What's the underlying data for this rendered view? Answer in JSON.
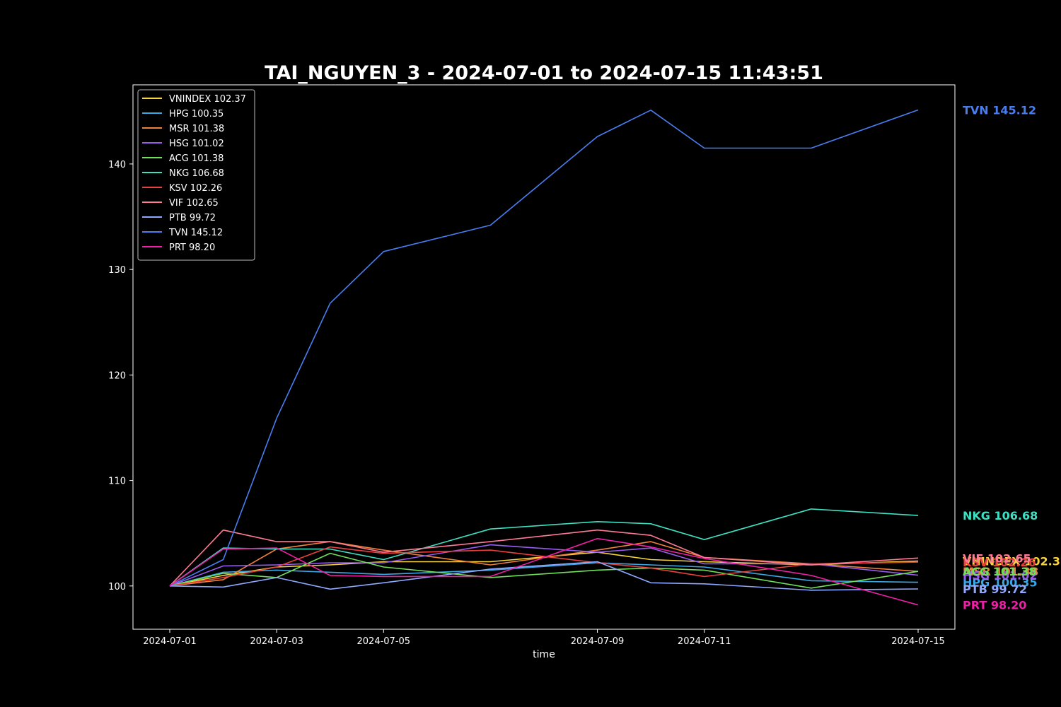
{
  "chart_data": {
    "type": "line",
    "title": "TAI_NGUYEN_3 - 2024-07-01 to 2024-07-15 11:43:51",
    "xlabel": "time",
    "ylabel": "",
    "x": [
      "2024-07-01",
      "2024-07-02",
      "2024-07-03",
      "2024-07-04",
      "2024-07-05",
      "2024-07-07",
      "2024-07-09",
      "2024-07-10",
      "2024-07-11",
      "2024-07-13",
      "2024-07-15"
    ],
    "x_ticks": [
      "2024-07-01",
      "2024-07-03",
      "2024-07-05",
      "2024-07-09",
      "2024-07-11",
      "2024-07-15"
    ],
    "y_ticks": [
      100,
      110,
      120,
      130,
      140
    ],
    "ylim": [
      95.9,
      147.5
    ],
    "grid": false,
    "legend_position": "top-left",
    "series": [
      {
        "name": "VNINDEX",
        "label": "VNINDEX 102.37",
        "color": "#f7d43b",
        "values": [
          100,
          101.0,
          101.8,
          102.0,
          102.3,
          102.3,
          103.2,
          102.5,
          102.3,
          102.0,
          102.37
        ]
      },
      {
        "name": "HPG",
        "label": "HPG 100.35",
        "color": "#3ba8e6",
        "values": [
          100,
          101.3,
          101.5,
          101.3,
          101.1,
          101.5,
          102.2,
          102.0,
          101.8,
          100.5,
          100.35
        ]
      },
      {
        "name": "MSR",
        "label": "MSR 101.38",
        "color": "#f0813a",
        "values": [
          100,
          100.6,
          103.5,
          104.2,
          103.4,
          102.0,
          103.4,
          104.2,
          102.7,
          102.1,
          101.38
        ]
      },
      {
        "name": "HSG",
        "label": "HSG 101.02",
        "color": "#9a5cf0",
        "values": [
          100,
          101.9,
          102.0,
          102.2,
          102.2,
          103.9,
          103.2,
          103.6,
          102.1,
          102.1,
          101.02
        ]
      },
      {
        "name": "ACG",
        "label": "ACG 101.38",
        "color": "#6ee05a",
        "values": [
          100,
          101.2,
          100.8,
          103.1,
          101.8,
          100.8,
          101.5,
          101.7,
          101.5,
          99.8,
          101.38
        ]
      },
      {
        "name": "NKG",
        "label": "NKG 106.68",
        "color": "#3ee0c3",
        "values": [
          100,
          103.6,
          103.5,
          103.5,
          102.5,
          105.4,
          106.1,
          105.9,
          104.4,
          107.3,
          106.68
        ]
      },
      {
        "name": "KSV",
        "label": "KSV 102.26",
        "color": "#e8403f",
        "values": [
          100,
          100.8,
          101.8,
          103.7,
          103.1,
          103.4,
          102.2,
          101.7,
          100.9,
          102.1,
          102.26
        ]
      },
      {
        "name": "VIF",
        "label": "VIF 102.65",
        "color": "#ff7a94",
        "values": [
          100,
          105.3,
          104.2,
          104.2,
          103.2,
          104.2,
          105.3,
          104.8,
          102.7,
          102.0,
          102.65
        ]
      },
      {
        "name": "PTB",
        "label": "PTB 99.72",
        "color": "#8fa8ff",
        "values": [
          100,
          99.9,
          100.8,
          99.7,
          100.3,
          101.6,
          102.3,
          100.3,
          100.2,
          99.6,
          99.72
        ]
      },
      {
        "name": "TVN",
        "label": "TVN 145.12",
        "color": "#4a7ef0",
        "values": [
          100,
          102.5,
          115.9,
          126.8,
          131.7,
          134.2,
          142.6,
          145.1,
          141.5,
          141.5,
          145.12
        ]
      },
      {
        "name": "PRT",
        "label": "PRT 98.20",
        "color": "#f01fa8",
        "values": [
          100,
          103.5,
          103.6,
          101.0,
          100.9,
          100.9,
          104.5,
          103.7,
          102.6,
          101.0,
          98.2
        ]
      }
    ]
  }
}
